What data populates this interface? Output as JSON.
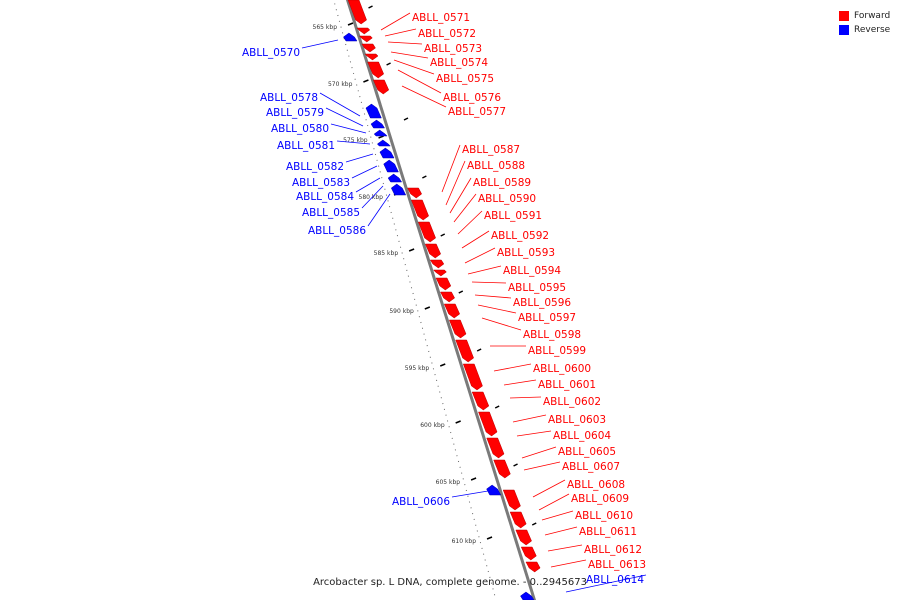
{
  "caption": "Arcobacter sp. L DNA, complete genome. - 0..2945673",
  "legend": [
    {
      "label": "Forward",
      "color": "#ff0000"
    },
    {
      "label": "Reverse",
      "color": "#0000ff"
    }
  ],
  "colors": {
    "forward": "#ff0000",
    "reverse": "#0000ff",
    "backbone": "#808080"
  },
  "ticks": [
    "565 kbp",
    "570 kbp",
    "575 kbp",
    "580 kbp",
    "585 kbp",
    "590 kbp",
    "595 kbp",
    "600 kbp",
    "605 kbp",
    "610 kbp"
  ],
  "forward_genes": [
    "ABLL_0571",
    "ABLL_0572",
    "ABLL_0573",
    "ABLL_0574",
    "ABLL_0575",
    "ABLL_0576",
    "ABLL_0577",
    "ABLL_0587",
    "ABLL_0588",
    "ABLL_0589",
    "ABLL_0590",
    "ABLL_0591",
    "ABLL_0592",
    "ABLL_0593",
    "ABLL_0594",
    "ABLL_0595",
    "ABLL_0596",
    "ABLL_0597",
    "ABLL_0598",
    "ABLL_0599",
    "ABLL_0600",
    "ABLL_0601",
    "ABLL_0602",
    "ABLL_0603",
    "ABLL_0604",
    "ABLL_0605",
    "ABLL_0607",
    "ABLL_0608",
    "ABLL_0609",
    "ABLL_0610",
    "ABLL_0611",
    "ABLL_0612",
    "ABLL_0613"
  ],
  "reverse_genes": [
    "ABLL_0570",
    "ABLL_0578",
    "ABLL_0579",
    "ABLL_0580",
    "ABLL_0581",
    "ABLL_0582",
    "ABLL_0583",
    "ABLL_0584",
    "ABLL_0585",
    "ABLL_0586",
    "ABLL_0606",
    "ABLL_0614"
  ]
}
